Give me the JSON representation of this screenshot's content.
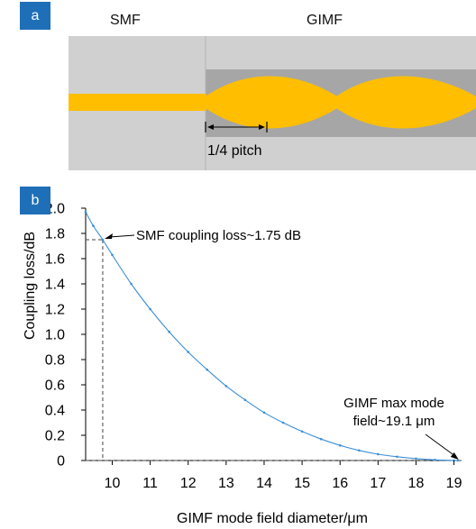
{
  "panel_a": {
    "tag": "a",
    "label_smf": "SMF",
    "label_gimf": "GIMF",
    "pitch_label": "1/4 pitch",
    "colors": {
      "cladding": "#d0d0d0",
      "gimf_core": "#a6a6a6",
      "beam": "#ffbe00"
    }
  },
  "panel_b": {
    "tag": "b"
  },
  "chart_data": {
    "type": "line",
    "xlabel": "GIMF mode field diameter/μm",
    "ylabel": "Coupling loss/dB",
    "xlim": [
      9.3,
      19.2
    ],
    "ylim": [
      0,
      2.0
    ],
    "x_ticks": [
      "10",
      "11",
      "12",
      "13",
      "14",
      "15",
      "16",
      "17",
      "18",
      "19"
    ],
    "y_ticks": [
      "0",
      "0.2",
      "0.4",
      "0.6",
      "0.8",
      "1.0",
      "1.2",
      "1.4",
      "1.6",
      "1.8",
      "2.0"
    ],
    "series_color": "#3c8fd6",
    "x": [
      9.3,
      9.5,
      9.75,
      10.0,
      10.5,
      11.0,
      11.5,
      12.0,
      12.5,
      13.0,
      13.5,
      14.0,
      14.5,
      15.0,
      15.5,
      16.0,
      16.5,
      17.0,
      17.5,
      18.0,
      18.5,
      19.0,
      19.1
    ],
    "y": [
      1.97,
      1.86,
      1.75,
      1.63,
      1.4,
      1.2,
      1.02,
      0.86,
      0.72,
      0.59,
      0.48,
      0.38,
      0.3,
      0.23,
      0.17,
      0.12,
      0.08,
      0.05,
      0.03,
      0.015,
      0.005,
      0.0005,
      0.0
    ],
    "annotations": [
      {
        "text": "SMF coupling loss~1.75 dB",
        "x": 9.75,
        "y": 1.75
      },
      {
        "text_line1": "GIMF max mode",
        "text_line2": "field~19.1 μm",
        "x": 19.1,
        "y": 0
      }
    ]
  }
}
